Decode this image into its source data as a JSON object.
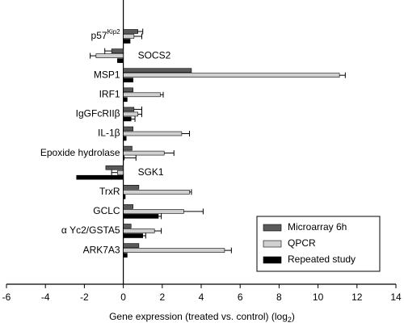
{
  "chart_data": {
    "type": "hbar",
    "x_label": {
      "text": "Gene expression (treated vs. control) (log",
      "sub": "2",
      "end": ")"
    },
    "categories": [
      {
        "text": "p57",
        "sup": "Kip2"
      },
      "SOCS2",
      "MSP1",
      "IRF1",
      "IgGFcRIIβ",
      "IL-1β",
      "Epoxide hydrolase",
      "SGK1",
      "TrxR",
      "GCLC",
      "α Yc2/GSTA5",
      "ARK7A3"
    ],
    "series": [
      {
        "name": "Microarray 6h",
        "color": "#5a5a5a",
        "values": [
          0.75,
          -0.6,
          3.5,
          0.5,
          0.55,
          0.5,
          0.45,
          -0.9,
          0.8,
          0.5,
          0.4,
          0.8
        ],
        "errors": [
          0.25,
          0.35,
          null,
          null,
          0.4,
          null,
          null,
          null,
          null,
          null,
          null,
          null
        ]
      },
      {
        "name": "QPCR",
        "color": "#d0d0d0",
        "values": [
          0.55,
          -1.4,
          11.1,
          1.9,
          0.75,
          3.0,
          2.1,
          -0.3,
          3.4,
          3.1,
          1.6,
          5.2
        ],
        "errors": [
          0.4,
          0.3,
          0.3,
          0.15,
          0.2,
          0.4,
          0.5,
          0.3,
          0.1,
          1.0,
          0.35,
          0.35
        ]
      },
      {
        "name": "Repeated study",
        "color": "#000000",
        "values": [
          0.35,
          -0.3,
          0.5,
          0.2,
          0.4,
          0.15,
          0.05,
          -2.4,
          0.1,
          1.8,
          1.0,
          0.2
        ],
        "errors": [
          null,
          null,
          null,
          null,
          0.2,
          null,
          0.6,
          null,
          null,
          0.15,
          0.15,
          null
        ]
      }
    ],
    "xlim": [
      -6,
      14
    ],
    "xticks": [
      -6,
      -4,
      -2,
      0,
      2,
      4,
      6,
      8,
      10,
      12,
      14
    ],
    "legend": "bottom-right"
  }
}
